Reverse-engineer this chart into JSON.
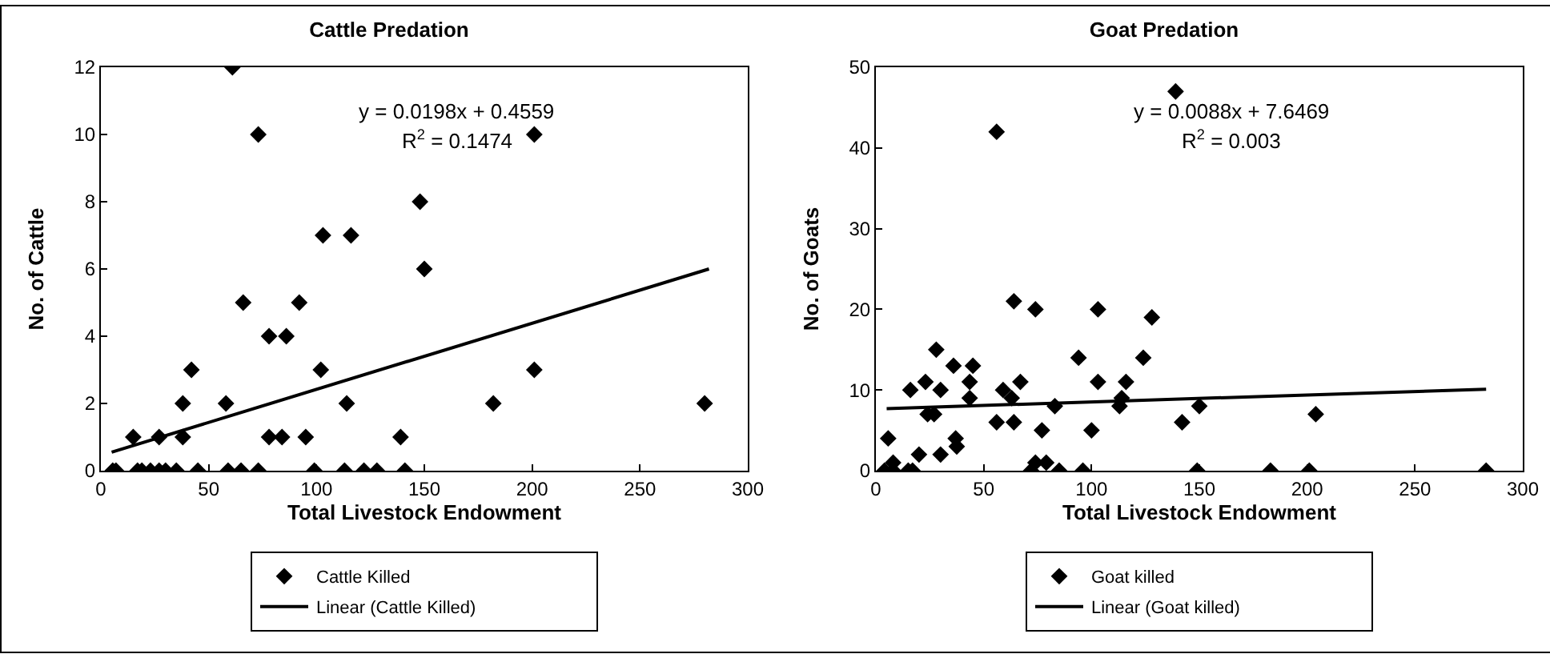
{
  "chart_data": [
    {
      "type": "scatter",
      "title": "Cattle Predation",
      "xlabel": "Total Livestock Endowment",
      "ylabel": "No. of Cattle",
      "xlim": [
        0,
        300
      ],
      "xticks": [
        0,
        50,
        100,
        150,
        200,
        250,
        300
      ],
      "ylim": [
        0,
        12
      ],
      "yticks": [
        0,
        2,
        4,
        6,
        8,
        10,
        12
      ],
      "grid": false,
      "legend": "bottom",
      "marker": "diamond",
      "annotations": [
        "y = 0.0198x + 0.4559",
        "R$^{2}$ = 0.1474"
      ],
      "series": [
        {
          "name": "Cattle Killed",
          "type": "scatter",
          "color": "#000000",
          "x": [
            7,
            5.5,
            15,
            17,
            19,
            23,
            27,
            27,
            30,
            35,
            38,
            38,
            42,
            45,
            58,
            59,
            61,
            65,
            66,
            73,
            73,
            78,
            78,
            84,
            86,
            92,
            95,
            99,
            102,
            103,
            113,
            114,
            116,
            122,
            128,
            139,
            141,
            148,
            150,
            182,
            201,
            201,
            280
          ],
          "values": [
            0,
            0,
            1,
            0,
            0,
            0,
            1,
            0,
            0,
            0,
            1,
            2,
            3,
            0,
            2,
            0,
            12,
            0,
            5,
            10,
            0,
            4,
            1,
            1,
            4,
            5,
            1,
            0,
            3,
            7,
            0,
            2,
            7,
            0,
            0,
            1,
            0,
            8,
            6,
            2,
            10,
            3,
            2
          ]
        },
        {
          "name": "Linear (Cattle Killed)",
          "type": "line",
          "marker": "none",
          "color": "#000000",
          "x": [
            5,
            282
          ],
          "values": [
            0.55,
            6.0
          ]
        }
      ]
    },
    {
      "type": "scatter",
      "title": "Goat Predation",
      "xlabel": "Total Livestock Endowment",
      "ylabel": "No. of Goats",
      "xlim": [
        0,
        300
      ],
      "xticks": [
        0,
        50,
        100,
        150,
        200,
        250,
        300
      ],
      "ylim": [
        0,
        50
      ],
      "yticks": [
        0,
        10,
        20,
        30,
        40,
        50
      ],
      "grid": false,
      "legend": "bottom",
      "marker": "diamond",
      "annotations": [
        "y = 0.0088x + 7.6469",
        "R$^{2}$ = 0.003"
      ],
      "series": [
        {
          "name": "Goat killed",
          "type": "scatter",
          "color": "#000000",
          "x": [
            5.7,
            4,
            8,
            8,
            15,
            17,
            16,
            20,
            23,
            24,
            27,
            28,
            30,
            30,
            36,
            37,
            37.5,
            43.5,
            43.5,
            45,
            56,
            56,
            59,
            63,
            64,
            64,
            67,
            72,
            74,
            74,
            77,
            79,
            83,
            85,
            94,
            96,
            100,
            103,
            103,
            113,
            114,
            116,
            124,
            128,
            139,
            142,
            149,
            150,
            183,
            201,
            204,
            283
          ],
          "values": [
            4,
            0,
            1,
            0,
            0,
            0,
            10,
            2,
            11,
            7,
            7,
            15,
            10,
            2,
            13,
            4,
            3,
            11,
            9,
            13,
            42,
            6,
            10,
            9,
            21,
            6,
            11,
            0,
            1,
            20,
            5,
            1,
            8,
            0,
            14,
            0,
            5,
            20,
            11,
            8,
            9,
            11,
            14,
            19,
            47,
            6,
            0,
            8,
            0,
            0,
            7,
            0
          ]
        },
        {
          "name": "Linear (Goat killed)",
          "type": "line",
          "marker": "none",
          "color": "#000000",
          "x": [
            5,
            283
          ],
          "values": [
            7.7,
            10.1
          ]
        }
      ]
    }
  ]
}
